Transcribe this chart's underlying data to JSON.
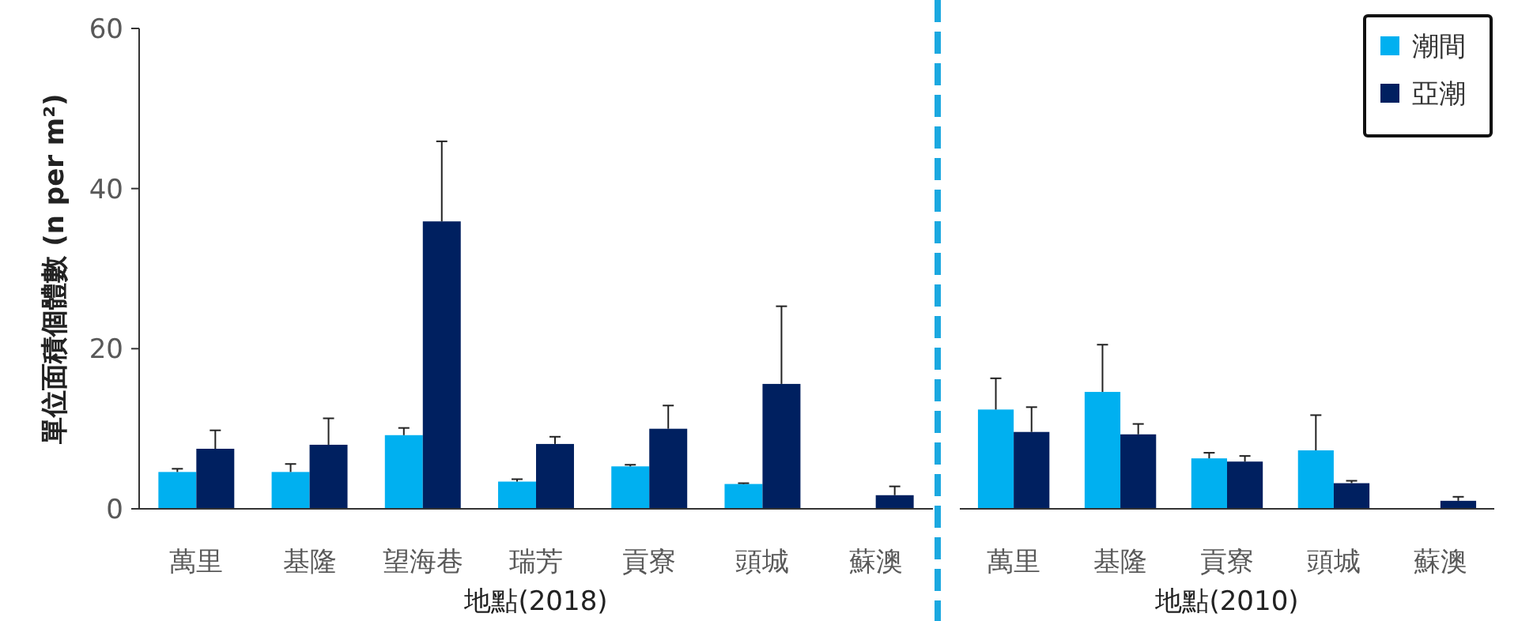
{
  "chart_data": [
    {
      "type": "bar",
      "ylabel": "單位面積個體數 (n per m²)",
      "xlabel": "地點(2018)",
      "categories": [
        "萬里",
        "基隆",
        "望海巷",
        "瑞芳",
        "貢寮",
        "頭城",
        "蘇澳"
      ],
      "ylim": [
        0,
        60
      ],
      "yticks": [
        0,
        20,
        40,
        60
      ],
      "grid": false,
      "legend": false,
      "series": [
        {
          "color": "#00b0f0",
          "values": [
            4.6,
            4.6,
            9.2,
            3.4,
            5.3,
            3.1,
            null
          ],
          "errors": [
            0.4,
            1.0,
            0.9,
            0.3,
            0.2,
            0.1,
            null
          ]
        },
        {
          "color": "#002060",
          "values": [
            7.5,
            8.0,
            35.9,
            8.1,
            10.0,
            15.6,
            1.7
          ],
          "errors": [
            2.3,
            3.3,
            10.0,
            0.9,
            2.9,
            9.7,
            1.1
          ]
        }
      ]
    },
    {
      "type": "bar",
      "xlabel": "地點(2010)",
      "categories": [
        "萬里",
        "基隆",
        "貢寮",
        "頭城",
        "蘇澳"
      ],
      "ylim": [
        0,
        60
      ],
      "tick_labels": "x",
      "grid": false,
      "legend": "top right",
      "series": [
        {
          "name": "潮間",
          "color": "#00b0f0",
          "values": [
            12.4,
            14.6,
            6.3,
            7.3,
            null
          ],
          "errors": [
            3.9,
            5.9,
            0.7,
            4.4,
            null
          ]
        },
        {
          "name": "亞潮",
          "color": "#002060",
          "values": [
            9.6,
            9.3,
            5.9,
            3.2,
            1.0
          ],
          "errors": [
            3.1,
            1.3,
            0.7,
            0.3,
            0.5
          ]
        }
      ]
    }
  ]
}
